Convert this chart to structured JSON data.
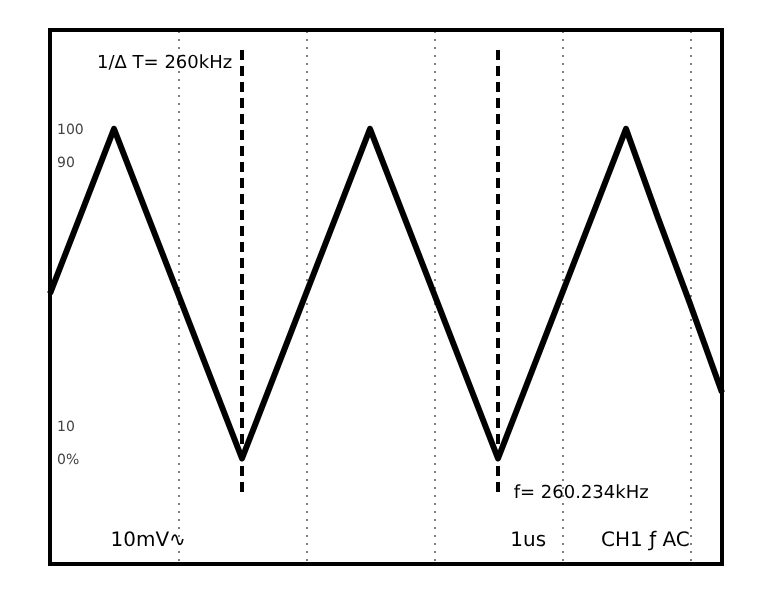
{
  "chart_data": {
    "type": "line",
    "categories": [
      null,
      null,
      null,
      null,
      null,
      null,
      null,
      null,
      null,
      null,
      null,
      null,
      null,
      null,
      null,
      null,
      null,
      null,
      null,
      null,
      null,
      null
    ],
    "series": [
      {
        "color": "#000000",
        "values": [
          50,
          75,
          100,
          75,
          50,
          25,
          0,
          25,
          50,
          75,
          100,
          75,
          50,
          25,
          0,
          25,
          50,
          75,
          100,
          73,
          47,
          20
        ]
      }
    ],
    "ylim": [
      -32,
      130
    ],
    "yticks": [
      {
        "value": 0,
        "label": "0%"
      },
      10,
      90,
      100
    ],
    "tick_labels": "y",
    "grid": "x",
    "marker": "none",
    "line_style": "solid",
    "annotations": [
      "1/Δ T= 260kHz",
      "f= 260.234kHz",
      "10mV∿",
      "1us",
      "CH1 ƒ AC"
    ]
  }
}
